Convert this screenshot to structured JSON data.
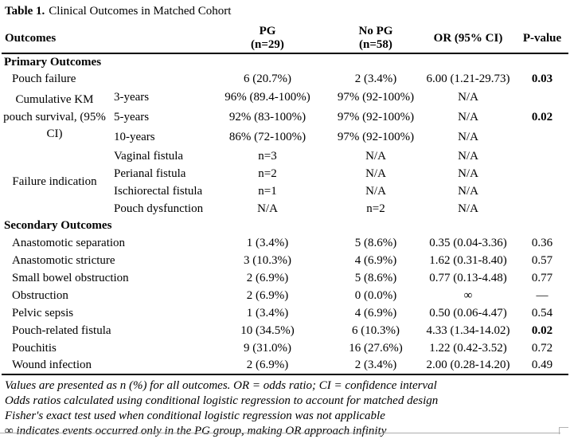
{
  "title": {
    "prefix": "Table 1.",
    "text": "Clinical Outcomes in Matched Cohort"
  },
  "header": {
    "outcomes": "Outcomes",
    "pg_line1": "PG",
    "pg_line2": "(n=29)",
    "nopg_line1": "No PG",
    "nopg_line2": "(n=58)",
    "or": "OR (95% CI)",
    "pvalue": "P-value"
  },
  "sections": {
    "primary": "Primary Outcomes",
    "secondary": "Secondary Outcomes"
  },
  "table": {
    "pouch_failure": {
      "label": "Pouch failure",
      "pg": "6 (20.7%)",
      "nopg": "2 (3.4%)",
      "or": "6.00 (1.21-29.73)",
      "p": "0.03"
    },
    "km_survival": {
      "label": "Cumulative KM pouch survival, (95% CI)",
      "subs": [
        "3-years",
        "5-years",
        "10-years"
      ],
      "pg": [
        "96% (89.4-100%)",
        "92% (83-100%)",
        "86% (72-100%)"
      ],
      "nopg": [
        "97% (92-100%)",
        "97% (92-100%)",
        "97% (92-100%)"
      ],
      "or": [
        "N/A",
        "N/A",
        "N/A"
      ],
      "p": [
        "",
        "0.02",
        ""
      ]
    },
    "failure_indication": {
      "label": "Failure indication",
      "subs": [
        "Vaginal fistula",
        "Perianal fistula",
        "Ischiorectal fistula",
        "Pouch dysfunction"
      ],
      "pg": [
        "n=3",
        "n=2",
        "n=1",
        "N/A"
      ],
      "nopg": [
        "N/A",
        "N/A",
        "N/A",
        "n=2"
      ],
      "or": [
        "N/A",
        "N/A",
        "N/A",
        "N/A"
      ],
      "p": [
        "",
        "",
        "",
        ""
      ]
    },
    "secondary": [
      {
        "label": "Anastomotic separation",
        "pg": "1 (3.4%)",
        "nopg": "5 (8.6%)",
        "or": "0.35 (0.04-3.36)",
        "p": "0.36"
      },
      {
        "label": "Anastomotic stricture",
        "pg": "3 (10.3%)",
        "nopg": "4 (6.9%)",
        "or": "1.62 (0.31-8.40)",
        "p": "0.57"
      },
      {
        "label": "Small bowel obstruction",
        "pg": "2 (6.9%)",
        "nopg": "5 (8.6%)",
        "or": "0.77 (0.13-4.48)",
        "p": "0.77"
      },
      {
        "label": "Obstruction",
        "pg": "2 (6.9%)",
        "nopg": "0 (0.0%)",
        "or": "∞",
        "p": "—"
      },
      {
        "label": "Pelvic sepsis",
        "pg": "1 (3.4%)",
        "nopg": "4 (6.9%)",
        "or": "0.50 (0.06-4.47)",
        "p": "0.54"
      },
      {
        "label": "Pouch-related fistula",
        "pg": "10 (34.5%)",
        "nopg": "6 (10.3%)",
        "or": "4.33 (1.34-14.02)",
        "p": "0.02"
      },
      {
        "label": "Pouchitis",
        "pg": "9 (31.0%)",
        "nopg": "16 (27.6%)",
        "or": "1.22 (0.42-3.52)",
        "p": "0.72"
      },
      {
        "label": "Wound infection",
        "pg": "2 (6.9%)",
        "nopg": "2 (3.4%)",
        "or": "2.00 (0.28-14.20)",
        "p": "0.49"
      }
    ]
  },
  "footnotes": [
    "Values are presented as n (%) for all outcomes. OR = odds ratio; CI = confidence interval",
    "Odds ratios calculated using conditional logistic regression to account for matched design",
    "Fisher's exact test used when conditional logistic regression was not applicable",
    "∞ indicates events occurred only in the PG group, making OR approach infinity"
  ]
}
